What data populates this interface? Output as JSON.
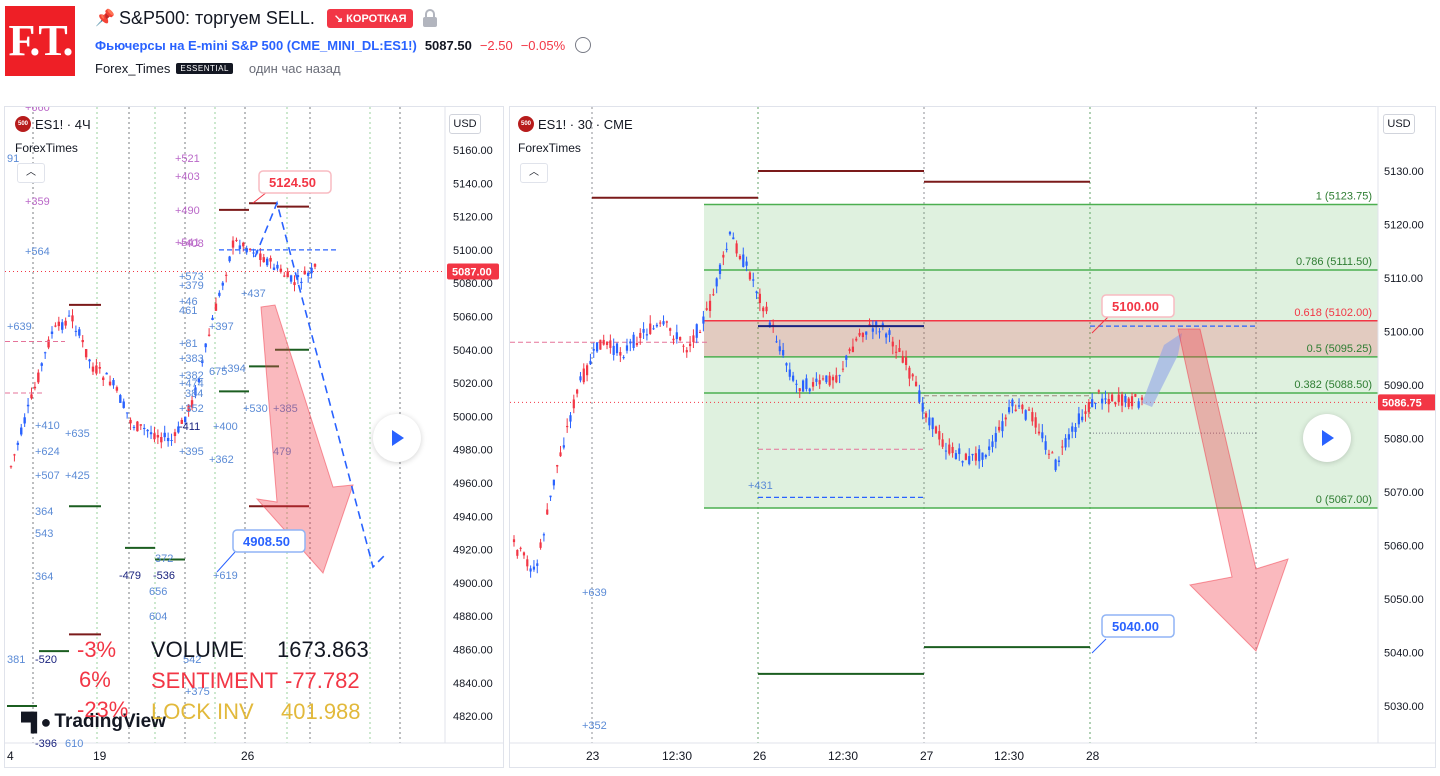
{
  "header": {
    "logo_text": "F.T.",
    "pin_icon": "pin-icon",
    "title": "S&P500: торгуем SELL.",
    "badge": "↘ КОРОТКАЯ",
    "symbol_full": "Фьючерсы на E-mini S&P 500 (CME_MINI_DL:ES1!)",
    "price": "5087.50",
    "change": "−2.50",
    "change_pct": "−0.05%",
    "author": "Forex_Times",
    "author_badge": "ESSENTIAL",
    "published": "один час назад"
  },
  "left_chart": {
    "symbol": "ES1! · 4Ч",
    "indicator": "ForexTimes",
    "currency": "USD",
    "price_ticks": [
      "5160.00",
      "5140.00",
      "5120.00",
      "5100.00",
      "5080.00",
      "5060.00",
      "5040.00",
      "5020.00",
      "5000.00",
      "4980.00",
      "4960.00",
      "4940.00",
      "4920.00",
      "4900.00",
      "4880.00",
      "4860.00",
      "4840.00",
      "4820.00"
    ],
    "current_price": "5087.00",
    "x_ticks": [
      "4",
      "19",
      "26"
    ],
    "label_high": "5124.50",
    "label_low": "4908.50",
    "stats": [
      {
        "pct": "-3%",
        "label": "VOLUME",
        "value": "1673.863"
      },
      {
        "pct": "6%",
        "label": "SENTIMENT",
        "value": "-77.782"
      },
      {
        "pct": "-23%",
        "label": "LOCK INV",
        "value": "401.988"
      }
    ],
    "footprint_labels": [
      "+660",
      "91",
      "+521",
      "+403",
      "+359",
      "+490",
      "+541",
      "+408",
      "+564",
      "+573",
      "+379",
      "+46",
      "461",
      "+639",
      "+397",
      "+81",
      "+383",
      "+382",
      "+474",
      "384",
      "+410",
      "+635",
      "+352",
      "+394",
      "675",
      "+624",
      "-411",
      "+400",
      "+530",
      "+385",
      "+395",
      "+362",
      "479",
      "+507",
      "+425",
      "364",
      "543",
      "372",
      "364",
      "-479",
      "-536",
      "656",
      "+619",
      "604",
      "381",
      "-520",
      "542",
      "+375",
      "-396",
      "610",
      "+437"
    ],
    "tv_brand": "TradingView"
  },
  "right_chart": {
    "symbol": "ES1! · 30 · CME",
    "indicator": "ForexTimes",
    "currency": "USD",
    "price_ticks": [
      "5130.00",
      "5120.00",
      "5110.00",
      "5100.00",
      "5090.00",
      "5080.00",
      "5070.00",
      "5060.00",
      "5050.00",
      "5040.00",
      "5030.00"
    ],
    "current_price": "5086.75",
    "x_ticks": [
      "23",
      "12:30",
      "26",
      "12:30",
      "27",
      "12:30",
      "28"
    ],
    "fib_levels": [
      {
        "ratio": "1 (5123.75)",
        "price": 5123.75
      },
      {
        "ratio": "0.786 (5111.50)",
        "price": 5111.5
      },
      {
        "ratio": "0.618 (5102.00)",
        "price": 5102
      },
      {
        "ratio": "0.5 (5095.25)",
        "price": 5095.25
      },
      {
        "ratio": "0.382 (5088.50)",
        "price": 5088.5
      },
      {
        "ratio": "0 (5067.00)",
        "price": 5067
      }
    ],
    "label_entry": "5100.00",
    "label_target": "5040.00",
    "footprint_labels": [
      "+431",
      "+639",
      "+352"
    ]
  },
  "colors": {
    "bull": "#2962ff",
    "bear": "#f23645",
    "fib_fill": "#4caf50",
    "zone": "#f23645",
    "accent": "#2962ff",
    "lock": "#e2b93b",
    "red_text": "#f23645"
  }
}
